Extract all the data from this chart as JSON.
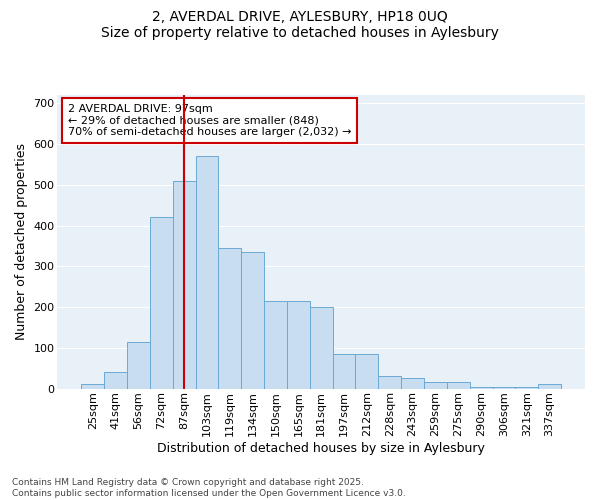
{
  "title1": "2, AVERDAL DRIVE, AYLESBURY, HP18 0UQ",
  "title2": "Size of property relative to detached houses in Aylesbury",
  "xlabel": "Distribution of detached houses by size in Aylesbury",
  "ylabel": "Number of detached properties",
  "categories": [
    "25sqm",
    "41sqm",
    "56sqm",
    "72sqm",
    "87sqm",
    "103sqm",
    "119sqm",
    "134sqm",
    "150sqm",
    "165sqm",
    "181sqm",
    "197sqm",
    "212sqm",
    "228sqm",
    "243sqm",
    "259sqm",
    "275sqm",
    "290sqm",
    "306sqm",
    "321sqm",
    "337sqm"
  ],
  "values": [
    10,
    40,
    115,
    420,
    510,
    570,
    345,
    335,
    215,
    215,
    200,
    85,
    85,
    30,
    25,
    15,
    15,
    5,
    3,
    5,
    10
  ],
  "bar_color": "#c9ddf0",
  "bar_edge_color": "#6aaad4",
  "vline_x_index": 4,
  "vline_color": "#cc0000",
  "annotation_text": "2 AVERDAL DRIVE: 97sqm\n← 29% of detached houses are smaller (848)\n70% of semi-detached houses are larger (2,032) →",
  "annotation_box_color": "white",
  "annotation_box_edge": "#cc0000",
  "ylim": [
    0,
    720
  ],
  "yticks": [
    0,
    100,
    200,
    300,
    400,
    500,
    600,
    700
  ],
  "bg_color": "#e8f0f8",
  "footer": "Contains HM Land Registry data © Crown copyright and database right 2025.\nContains public sector information licensed under the Open Government Licence v3.0.",
  "title_fontsize": 10,
  "axis_label_fontsize": 9,
  "tick_fontsize": 8,
  "annotation_fontsize": 8,
  "footer_fontsize": 6.5
}
